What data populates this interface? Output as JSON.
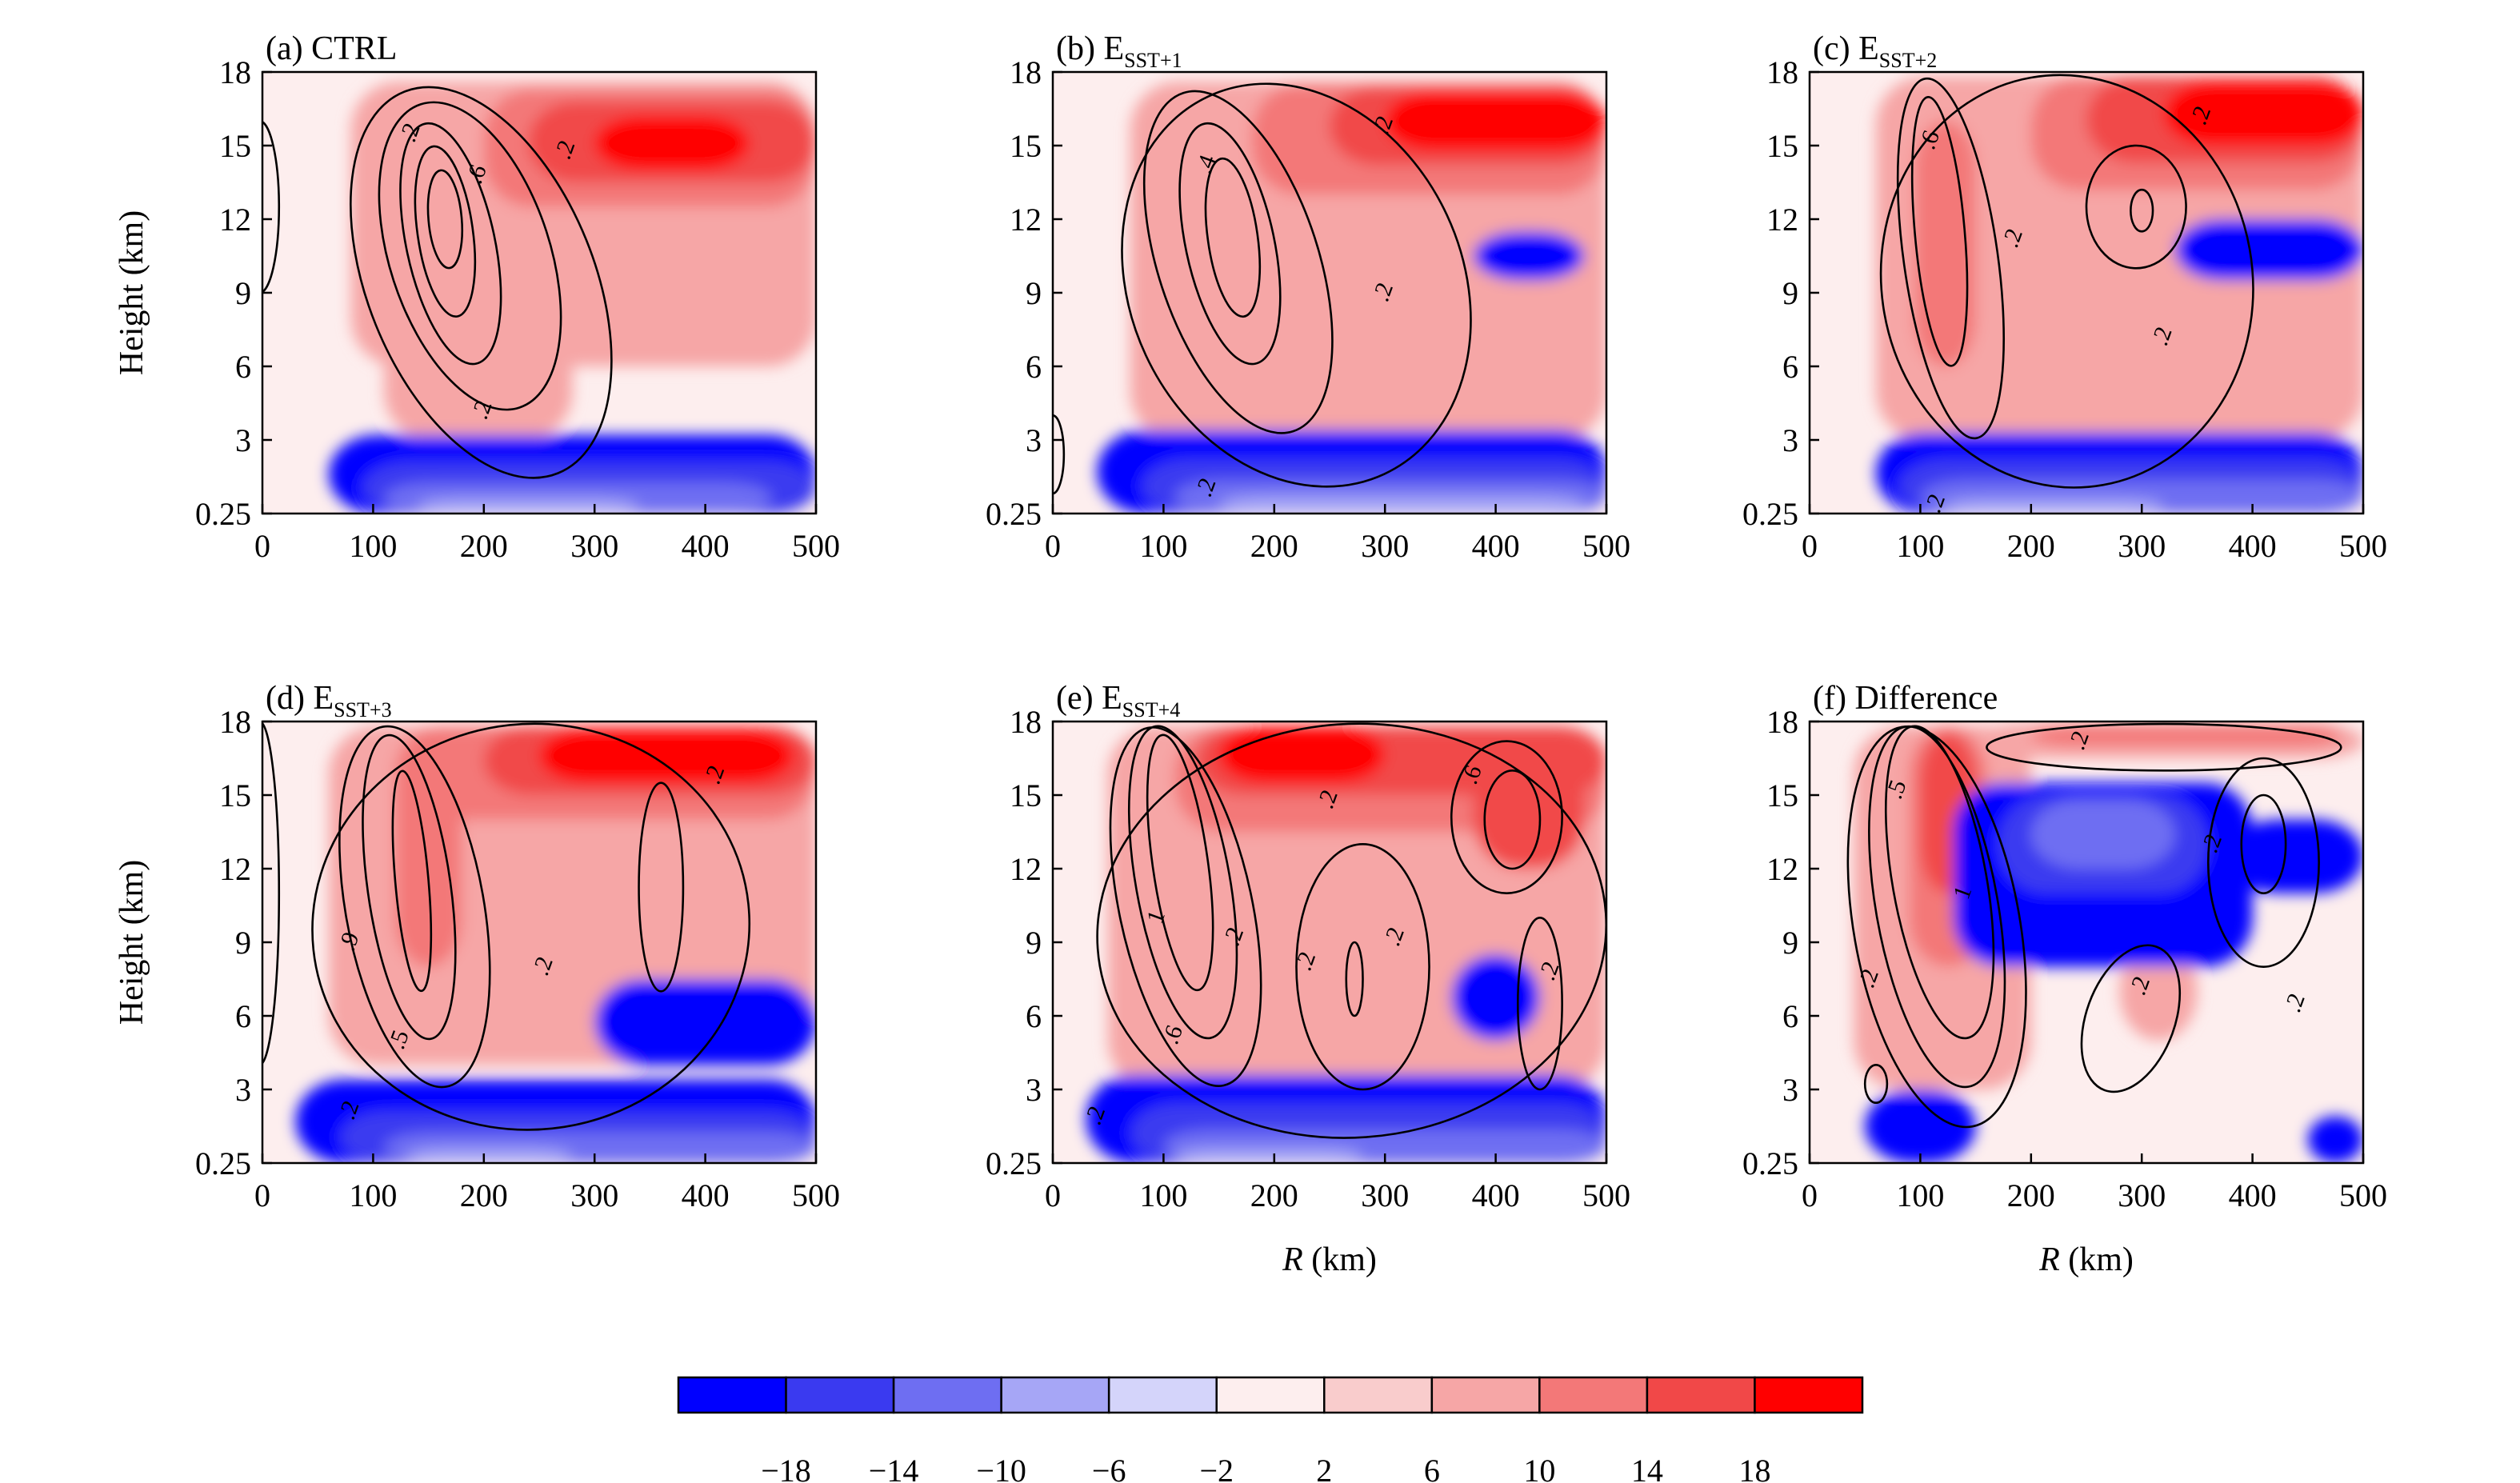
{
  "chart_data": [
    {
      "type": "heatmap",
      "panel_label": "(a) CTRL",
      "title_prefix": "(a) CTRL",
      "title_sub": "",
      "ylabel": "Height (km)",
      "xlabel": "",
      "xlim": [
        0,
        500
      ],
      "ylim": [
        0.25,
        18
      ],
      "xticks": [
        "0",
        "100",
        "200",
        "300",
        "400",
        "500"
      ],
      "yticks": [
        "0.25",
        "3",
        "6",
        "9",
        "12",
        "15",
        "18"
      ],
      "contour_labels": [
        {
          "text": ".2",
          "r": 135,
          "z": 15.5
        },
        {
          "text": ".6",
          "r": 195,
          "z": 13.8
        },
        {
          "text": ".2",
          "r": 275,
          "z": 14.8
        },
        {
          "text": ".2",
          "r": 200,
          "z": 4.2
        }
      ]
    },
    {
      "type": "heatmap",
      "panel_label": "(b) ESST+1",
      "title_prefix": "(b) E",
      "title_sub": "SST+1",
      "ylabel": "",
      "xlabel": "",
      "xlim": [
        0,
        500
      ],
      "ylim": [
        0.25,
        18
      ],
      "xticks": [
        "0",
        "100",
        "200",
        "300",
        "400",
        "500"
      ],
      "yticks": [
        "0.25",
        "3",
        "6",
        "9",
        "12",
        "15",
        "18"
      ],
      "contour_labels": [
        {
          "text": ".2",
          "r": 300,
          "z": 15.8
        },
        {
          "text": ".4",
          "r": 140,
          "z": 14.2
        },
        {
          "text": ".2",
          "r": 300,
          "z": 9.0
        },
        {
          "text": ".2",
          "r": 140,
          "z": 1.2
        }
      ]
    },
    {
      "type": "heatmap",
      "panel_label": "(c) ESST+2",
      "title_prefix": "(c) E",
      "title_sub": "SST+2",
      "ylabel": "",
      "xlabel": "",
      "xlim": [
        0,
        500
      ],
      "ylim": [
        0.25,
        18
      ],
      "xticks": [
        "0",
        "100",
        "200",
        "300",
        "400",
        "500"
      ],
      "yticks": [
        "0.25",
        "3",
        "6",
        "9",
        "12",
        "15",
        "18"
      ],
      "contour_labels": [
        {
          "text": ".2",
          "r": 355,
          "z": 16.2
        },
        {
          "text": ".6",
          "r": 110,
          "z": 15.2
        },
        {
          "text": ".2",
          "r": 185,
          "z": 11.2
        },
        {
          "text": ".2",
          "r": 320,
          "z": 7.2
        },
        {
          "text": ".2",
          "r": 115,
          "z": 0.6
        }
      ]
    },
    {
      "type": "heatmap",
      "panel_label": "(d) ESST+3",
      "title_prefix": "(d) E",
      "title_sub": "SST+3",
      "ylabel": "Height (km)",
      "xlabel": "",
      "xlim": [
        0,
        500
      ],
      "ylim": [
        0.25,
        18
      ],
      "xticks": [
        "0",
        "100",
        "200",
        "300",
        "400",
        "500"
      ],
      "yticks": [
        "0.25",
        "3",
        "6",
        "9",
        "12",
        "15",
        "18"
      ],
      "contour_labels": [
        {
          "text": ".2",
          "r": 410,
          "z": 15.8
        },
        {
          "text": ".9",
          "r": 80,
          "z": 9.0
        },
        {
          "text": ".2",
          "r": 255,
          "z": 8.0
        },
        {
          "text": ".5",
          "r": 125,
          "z": 5.0
        },
        {
          "text": ".2",
          "r": 80,
          "z": 2.2
        }
      ]
    },
    {
      "type": "heatmap",
      "panel_label": "(e) ESST+4",
      "title_prefix": "(e) E",
      "title_sub": "SST+4",
      "ylabel": "",
      "xlabel": "R (km)",
      "xlabel_italic": "R",
      "xlabel_rest": " (km)",
      "xlim": [
        0,
        500
      ],
      "ylim": [
        0.25,
        18
      ],
      "xticks": [
        "0",
        "100",
        "200",
        "300",
        "400",
        "500"
      ],
      "yticks": [
        "0.25",
        "3",
        "6",
        "9",
        "12",
        "15",
        "18"
      ],
      "contour_labels": [
        {
          "text": ".2",
          "r": 250,
          "z": 14.8
        },
        {
          "text": ".6",
          "r": 380,
          "z": 15.8
        },
        {
          "text": "1",
          "r": 95,
          "z": 10.0
        },
        {
          "text": ".2",
          "r": 165,
          "z": 9.2
        },
        {
          "text": ".2",
          "r": 230,
          "z": 8.2
        },
        {
          "text": ".2",
          "r": 310,
          "z": 9.2
        },
        {
          "text": ".2",
          "r": 450,
          "z": 7.8
        },
        {
          "text": ".6",
          "r": 110,
          "z": 5.2
        },
        {
          "text": ".2",
          "r": 40,
          "z": 2.0
        }
      ]
    },
    {
      "type": "heatmap",
      "panel_label": "(f) Difference",
      "title_prefix": "(f) Difference",
      "title_sub": "",
      "ylabel": "",
      "xlabel": "R (km)",
      "xlabel_italic": "R",
      "xlabel_rest": " (km)",
      "xlim": [
        0,
        500
      ],
      "ylim": [
        0.25,
        18
      ],
      "xticks": [
        "0",
        "100",
        "200",
        "300",
        "400",
        "500"
      ],
      "yticks": [
        "0.25",
        "3",
        "6",
        "9",
        "12",
        "15",
        "18"
      ],
      "contour_labels": [
        {
          "text": ".2",
          "r": 245,
          "z": 17.2
        },
        {
          "text": ".5",
          "r": 80,
          "z": 15.2
        },
        {
          "text": ".2",
          "r": 365,
          "z": 13.0
        },
        {
          "text": "1",
          "r": 140,
          "z": 11.0
        },
        {
          "text": ".2",
          "r": 55,
          "z": 7.5
        },
        {
          "text": ".2",
          "r": 300,
          "z": 7.2
        },
        {
          "text": ".2",
          "r": 440,
          "z": 6.5
        }
      ]
    }
  ],
  "colorbar": {
    "colors": [
      "#0000ff",
      "#3a3af0",
      "#6e6ef2",
      "#a6a6f6",
      "#d4d4fa",
      "#fdeeee",
      "#f9cccc",
      "#f6a6a6",
      "#f37878",
      "#f14848",
      "#ff0000"
    ],
    "tick_labels": [
      "−18",
      "−14",
      "−10",
      "−6",
      "−2",
      "2",
      "6",
      "10",
      "14",
      "18"
    ]
  }
}
